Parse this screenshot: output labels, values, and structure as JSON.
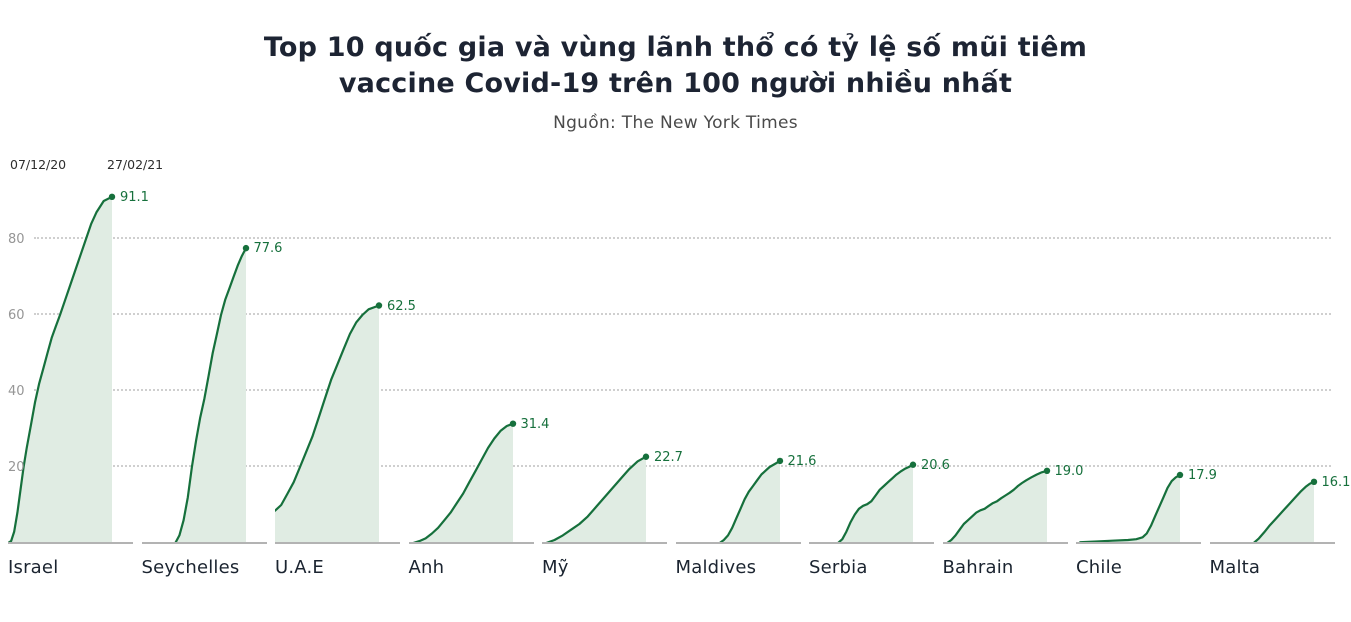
{
  "title": {
    "line1": "Top 10 quốc gia và vùng lãnh thổ có tỷ lệ số mũi tiêm",
    "line2": "vaccine Covid-19 trên 100 người nhiều nhất"
  },
  "source": "Nguồn: The New York Times",
  "chart_data": {
    "type": "area",
    "small_multiples": true,
    "title": "Top 10 quốc gia và vùng lãnh thổ có tỷ lệ số mũi tiêm vaccine Covid-19 trên 100 người nhiều nhất",
    "subtitle": "Nguồn: The New York Times",
    "x_range_labels": [
      "07/12/20",
      "27/02/21"
    ],
    "y_ticks": [
      20,
      40,
      60,
      80
    ],
    "y_max": 100,
    "grid": "dotted-horizontal",
    "legend": "none",
    "colors": {
      "line": "#16703c",
      "fill": "#e0ece3",
      "grid": "#cfcfcf",
      "baseline": "#b3b3b3",
      "value_label": "#16703c",
      "title_text": "#1d2433",
      "tick_text": "#969696"
    },
    "series": [
      {
        "slug": "israel",
        "name": "Israel",
        "value": 91.1,
        "label": "91.1",
        "points": [
          [
            0,
            0
          ],
          [
            0.03,
            0.5
          ],
          [
            0.06,
            3
          ],
          [
            0.09,
            8
          ],
          [
            0.12,
            14
          ],
          [
            0.15,
            20
          ],
          [
            0.18,
            25
          ],
          [
            0.22,
            31
          ],
          [
            0.26,
            37
          ],
          [
            0.3,
            42
          ],
          [
            0.34,
            46
          ],
          [
            0.38,
            50
          ],
          [
            0.42,
            54
          ],
          [
            0.46,
            57
          ],
          [
            0.5,
            60
          ],
          [
            0.55,
            64
          ],
          [
            0.6,
            68
          ],
          [
            0.65,
            72
          ],
          [
            0.7,
            76
          ],
          [
            0.75,
            80
          ],
          [
            0.8,
            84
          ],
          [
            0.85,
            87
          ],
          [
            0.92,
            90
          ],
          [
            1,
            91.1
          ]
        ]
      },
      {
        "slug": "seychelles",
        "name": "Seychelles",
        "value": 77.6,
        "label": "77.6",
        "points": [
          [
            0.32,
            0
          ],
          [
            0.36,
            2
          ],
          [
            0.4,
            6
          ],
          [
            0.44,
            12
          ],
          [
            0.48,
            20
          ],
          [
            0.52,
            27
          ],
          [
            0.56,
            33
          ],
          [
            0.6,
            38
          ],
          [
            0.64,
            44
          ],
          [
            0.68,
            50
          ],
          [
            0.72,
            55
          ],
          [
            0.76,
            60
          ],
          [
            0.8,
            64
          ],
          [
            0.84,
            67
          ],
          [
            0.88,
            70
          ],
          [
            0.92,
            73
          ],
          [
            0.96,
            75.5
          ],
          [
            1,
            77.6
          ]
        ]
      },
      {
        "slug": "uae",
        "name": "U.A.E",
        "value": 62.5,
        "label": "62.5",
        "points": [
          [
            0,
            8.5
          ],
          [
            0.06,
            10
          ],
          [
            0.12,
            13
          ],
          [
            0.18,
            16
          ],
          [
            0.24,
            20
          ],
          [
            0.3,
            24
          ],
          [
            0.36,
            28
          ],
          [
            0.42,
            33
          ],
          [
            0.48,
            38
          ],
          [
            0.54,
            43
          ],
          [
            0.6,
            47
          ],
          [
            0.66,
            51
          ],
          [
            0.72,
            55
          ],
          [
            0.78,
            58
          ],
          [
            0.84,
            60
          ],
          [
            0.9,
            61.5
          ],
          [
            1,
            62.5
          ]
        ]
      },
      {
        "slug": "anh",
        "name": "Anh",
        "value": 31.4,
        "label": "31.4",
        "points": [
          [
            0.04,
            0
          ],
          [
            0.1,
            0.5
          ],
          [
            0.16,
            1.2
          ],
          [
            0.22,
            2.5
          ],
          [
            0.28,
            4
          ],
          [
            0.34,
            6
          ],
          [
            0.4,
            8
          ],
          [
            0.46,
            10.5
          ],
          [
            0.52,
            13
          ],
          [
            0.58,
            16
          ],
          [
            0.64,
            19
          ],
          [
            0.7,
            22
          ],
          [
            0.76,
            25
          ],
          [
            0.82,
            27.5
          ],
          [
            0.88,
            29.5
          ],
          [
            0.94,
            30.8
          ],
          [
            1,
            31.4
          ]
        ]
      },
      {
        "slug": "my",
        "name": "Mỹ",
        "value": 22.7,
        "label": "22.7",
        "points": [
          [
            0.04,
            0
          ],
          [
            0.12,
            0.8
          ],
          [
            0.2,
            2
          ],
          [
            0.28,
            3.5
          ],
          [
            0.36,
            5
          ],
          [
            0.44,
            7
          ],
          [
            0.52,
            9.5
          ],
          [
            0.6,
            12
          ],
          [
            0.68,
            14.5
          ],
          [
            0.76,
            17
          ],
          [
            0.84,
            19.5
          ],
          [
            0.92,
            21.5
          ],
          [
            1,
            22.7
          ]
        ]
      },
      {
        "slug": "maldives",
        "name": "Maldives",
        "value": 21.6,
        "label": "21.6",
        "points": [
          [
            0.42,
            0
          ],
          [
            0.46,
            0.8
          ],
          [
            0.5,
            2
          ],
          [
            0.54,
            4
          ],
          [
            0.58,
            6.5
          ],
          [
            0.62,
            9
          ],
          [
            0.66,
            11.5
          ],
          [
            0.7,
            13.5
          ],
          [
            0.74,
            15
          ],
          [
            0.78,
            16.5
          ],
          [
            0.82,
            18
          ],
          [
            0.86,
            19
          ],
          [
            0.9,
            20
          ],
          [
            0.95,
            20.8
          ],
          [
            1,
            21.6
          ]
        ]
      },
      {
        "slug": "serbia",
        "name": "Serbia",
        "value": 20.6,
        "label": "20.6",
        "points": [
          [
            0.28,
            0
          ],
          [
            0.32,
            1
          ],
          [
            0.36,
            3
          ],
          [
            0.4,
            5.5
          ],
          [
            0.44,
            7.5
          ],
          [
            0.48,
            9
          ],
          [
            0.52,
            9.8
          ],
          [
            0.56,
            10.2
          ],
          [
            0.6,
            11
          ],
          [
            0.64,
            12.5
          ],
          [
            0.68,
            14
          ],
          [
            0.72,
            15
          ],
          [
            0.76,
            16
          ],
          [
            0.8,
            17
          ],
          [
            0.84,
            18
          ],
          [
            0.88,
            18.8
          ],
          [
            0.92,
            19.5
          ],
          [
            0.96,
            20
          ],
          [
            1,
            20.6
          ]
        ]
      },
      {
        "slug": "bahrain",
        "name": "Bahrain",
        "value": 19.0,
        "label": "19.0",
        "points": [
          [
            0.04,
            0
          ],
          [
            0.08,
            0.8
          ],
          [
            0.12,
            2
          ],
          [
            0.16,
            3.5
          ],
          [
            0.2,
            5
          ],
          [
            0.24,
            6
          ],
          [
            0.28,
            7
          ],
          [
            0.32,
            8
          ],
          [
            0.36,
            8.6
          ],
          [
            0.4,
            9
          ],
          [
            0.44,
            9.8
          ],
          [
            0.48,
            10.5
          ],
          [
            0.52,
            11
          ],
          [
            0.56,
            11.8
          ],
          [
            0.6,
            12.5
          ],
          [
            0.64,
            13.2
          ],
          [
            0.68,
            14
          ],
          [
            0.72,
            15
          ],
          [
            0.76,
            15.8
          ],
          [
            0.8,
            16.5
          ],
          [
            0.85,
            17.3
          ],
          [
            0.9,
            18
          ],
          [
            0.95,
            18.6
          ],
          [
            1,
            19
          ]
        ]
      },
      {
        "slug": "chile",
        "name": "Chile",
        "value": 17.9,
        "label": "17.9",
        "points": [
          [
            0.04,
            0.2
          ],
          [
            0.2,
            0.4
          ],
          [
            0.35,
            0.6
          ],
          [
            0.5,
            0.8
          ],
          [
            0.58,
            1
          ],
          [
            0.64,
            1.5
          ],
          [
            0.68,
            2.5
          ],
          [
            0.72,
            4.5
          ],
          [
            0.76,
            7
          ],
          [
            0.8,
            9.5
          ],
          [
            0.84,
            12
          ],
          [
            0.88,
            14.5
          ],
          [
            0.92,
            16.3
          ],
          [
            0.96,
            17.3
          ],
          [
            1,
            17.9
          ]
        ]
      },
      {
        "slug": "malta",
        "name": "Malta",
        "value": 16.1,
        "label": "16.1",
        "points": [
          [
            0.42,
            0
          ],
          [
            0.47,
            1.2
          ],
          [
            0.52,
            2.8
          ],
          [
            0.57,
            4.5
          ],
          [
            0.62,
            6
          ],
          [
            0.67,
            7.5
          ],
          [
            0.72,
            9
          ],
          [
            0.77,
            10.5
          ],
          [
            0.82,
            12
          ],
          [
            0.87,
            13.5
          ],
          [
            0.92,
            14.8
          ],
          [
            0.96,
            15.6
          ],
          [
            1,
            16.1
          ]
        ]
      }
    ]
  }
}
